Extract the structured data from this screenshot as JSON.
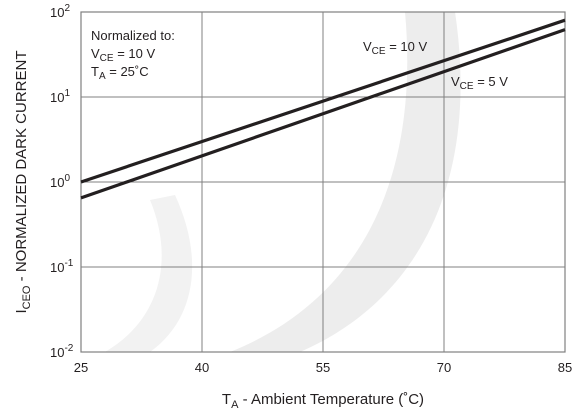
{
  "chart_data": {
    "type": "line",
    "xlabel_main": "T",
    "xlabel_sub": "A",
    "xlabel_rest": " - Ambient Temperature (˚C)",
    "ylabel_main": "I",
    "ylabel_sub": "CEO",
    "ylabel_rest": " - NORMALIZED DARK CURRENT",
    "x_ticks": [
      "25",
      "40",
      "55",
      "70",
      "85"
    ],
    "y_ticks": [
      {
        "base": "10",
        "exp": "-2"
      },
      {
        "base": "10",
        "exp": "-1"
      },
      {
        "base": "10",
        "exp": "0"
      },
      {
        "base": "10",
        "exp": "1"
      },
      {
        "base": "10",
        "exp": "2"
      }
    ],
    "xlim": [
      25,
      85
    ],
    "ylim": [
      0.01,
      100
    ],
    "yscale": "log",
    "grid": true,
    "note": {
      "line1": "Normalized to:",
      "line2_main": "V",
      "line2_sub": "CE",
      "line2_rest": " = 10 V",
      "line3_main": "T",
      "line3_sub": "A",
      "line3_rest": " = 25˚C"
    },
    "series": [
      {
        "label_main": "V",
        "label_sub": "CE",
        "label_rest": " = 10 V",
        "x": [
          25,
          85
        ],
        "y": [
          1.0,
          80
        ]
      },
      {
        "label_main": "V",
        "label_sub": "CE",
        "label_rest": " = 5 V",
        "x": [
          25,
          85
        ],
        "y": [
          0.65,
          62
        ]
      }
    ],
    "colors": {
      "line": "#231f20",
      "grid": "#808080",
      "watermark": "#ebebeb"
    }
  }
}
